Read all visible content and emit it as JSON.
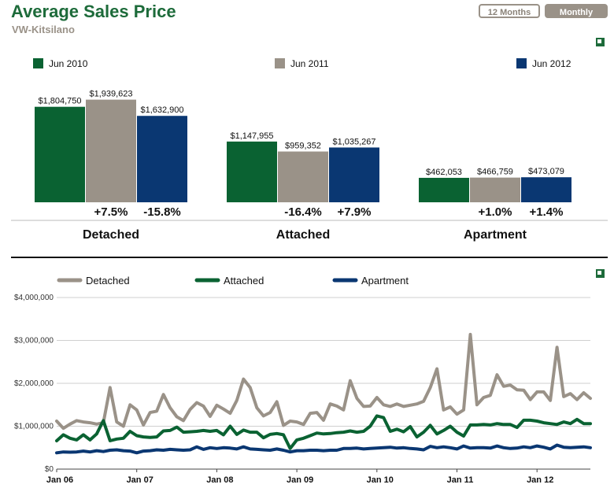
{
  "header": {
    "title": "Average Sales Price",
    "subtitle": "VW-Kitsilano",
    "toggle_12_months": "12 Months",
    "toggle_monthly": "Monthly"
  },
  "colors": {
    "green": "#0a6232",
    "taupe": "#9a9288",
    "navy": "#0a3772",
    "title_green": "#1d6b3a"
  },
  "chart_data": [
    {
      "type": "bar",
      "legend": [
        "Jun 2010",
        "Jun 2011",
        "Jun 2012"
      ],
      "legend_position": "top",
      "categories": [
        "Detached",
        "Attached",
        "Apartment"
      ],
      "series": [
        {
          "name": "Jun 2010",
          "values": [
            1804750,
            1147955,
            462053
          ],
          "labels": [
            "$1,804,750",
            "$1,147,955",
            "$462,053"
          ]
        },
        {
          "name": "Jun 2011",
          "values": [
            1939623,
            959352,
            466759
          ],
          "labels": [
            "$1,939,623",
            "$959,352",
            "$466,759"
          ]
        },
        {
          "name": "Jun 2012",
          "values": [
            1632900,
            1035267,
            473079
          ],
          "labels": [
            "$1,632,900",
            "$1,035,267",
            "$473,079"
          ]
        }
      ],
      "changes": [
        [
          "+7.5%",
          "-15.8%"
        ],
        [
          "-16.4%",
          "+7.9%"
        ],
        [
          "+1.0%",
          "+1.4%"
        ]
      ]
    },
    {
      "type": "line",
      "legend_position": "top",
      "x_ticks": [
        "Jan 06",
        "Jan 07",
        "Jan 08",
        "Jan 09",
        "Jan 10",
        "Jan 11",
        "Jan 12"
      ],
      "x_start": "2006-01",
      "y_ticks": [
        "$0",
        "$1,000,000",
        "$2,000,000",
        "$3,000,000",
        "$4,000,000"
      ],
      "ylim": [
        0,
        4000000
      ],
      "grid": true,
      "series": [
        {
          "name": "Detached",
          "values": [
            1120000,
            950000,
            1050000,
            1130000,
            1100000,
            1080000,
            1050000,
            1080000,
            1900000,
            1100000,
            1000000,
            1500000,
            1380000,
            1030000,
            1320000,
            1350000,
            1740000,
            1430000,
            1220000,
            1130000,
            1390000,
            1550000,
            1470000,
            1230000,
            1490000,
            1400000,
            1300000,
            1600000,
            2100000,
            1900000,
            1430000,
            1240000,
            1320000,
            1570000,
            1020000,
            1120000,
            1100000,
            1040000,
            1300000,
            1320000,
            1140000,
            1520000,
            1470000,
            1380000,
            2060000,
            1650000,
            1460000,
            1470000,
            1670000,
            1500000,
            1460000,
            1520000,
            1460000,
            1490000,
            1520000,
            1580000,
            1900000,
            2340000,
            1380000,
            1450000,
            1280000,
            1380000,
            3140000,
            1500000,
            1670000,
            1720000,
            2200000,
            1930000,
            1960000,
            1850000,
            1840000,
            1620000,
            1800000,
            1800000,
            1600000,
            2840000,
            1690000,
            1760000,
            1620000,
            1780000,
            1650000
          ],
          "color": "#9a9288"
        },
        {
          "name": "Attached",
          "values": [
            660000,
            800000,
            720000,
            680000,
            800000,
            680000,
            820000,
            1130000,
            660000,
            700000,
            720000,
            880000,
            780000,
            750000,
            740000,
            750000,
            890000,
            900000,
            980000,
            860000,
            870000,
            880000,
            900000,
            880000,
            900000,
            800000,
            1000000,
            810000,
            910000,
            860000,
            860000,
            730000,
            810000,
            830000,
            800000,
            480000,
            680000,
            720000,
            780000,
            840000,
            820000,
            830000,
            850000,
            860000,
            890000,
            860000,
            880000,
            1000000,
            1240000,
            1200000,
            880000,
            930000,
            870000,
            990000,
            750000,
            860000,
            1020000,
            820000,
            900000,
            1000000,
            860000,
            770000,
            1030000,
            1030000,
            1040000,
            1030000,
            1060000,
            1040000,
            1040000,
            970000,
            1140000,
            1140000,
            1120000,
            1080000,
            1060000,
            1040000,
            1100000,
            1060000,
            1160000,
            1060000,
            1060000
          ],
          "color": "#0a6232"
        },
        {
          "name": "Apartment",
          "values": [
            380000,
            400000,
            395000,
            400000,
            420000,
            400000,
            430000,
            410000,
            440000,
            450000,
            430000,
            420000,
            380000,
            420000,
            430000,
            450000,
            440000,
            460000,
            450000,
            440000,
            450000,
            520000,
            460000,
            500000,
            480000,
            500000,
            490000,
            470000,
            520000,
            470000,
            460000,
            450000,
            440000,
            470000,
            440000,
            400000,
            430000,
            430000,
            440000,
            440000,
            430000,
            440000,
            440000,
            480000,
            480000,
            490000,
            470000,
            480000,
            490000,
            500000,
            510000,
            490000,
            500000,
            480000,
            470000,
            450000,
            530000,
            500000,
            520000,
            500000,
            470000,
            540000,
            490000,
            500000,
            500000,
            490000,
            540000,
            500000,
            480000,
            490000,
            520000,
            500000,
            540000,
            510000,
            470000,
            560000,
            510000,
            500000,
            510000,
            520000,
            500000
          ],
          "color": "#0a3772"
        }
      ]
    }
  ]
}
